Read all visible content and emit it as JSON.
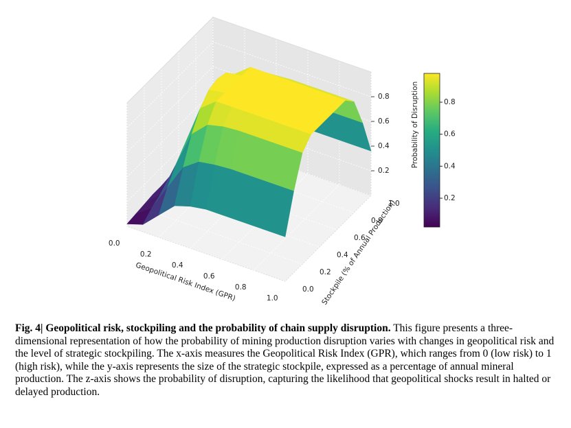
{
  "chart_data": {
    "type": "surface",
    "xlabel": "Geopolitical Risk Index (GPR)",
    "ylabel": "Stockpile (% of Annual Production)",
    "zlabel": "Probability of Disruption",
    "x": [
      0,
      0.1,
      0.2,
      0.3,
      0.4,
      0.5,
      0.6,
      0.7,
      0.8,
      0.9,
      1
    ],
    "y": [
      0,
      0.1,
      0.2,
      0.3,
      0.4,
      0.5,
      0.6,
      0.7,
      0.8,
      0.9,
      1
    ],
    "z": [
      [
        0.02,
        0.03,
        0.04,
        0.05,
        0.05,
        0.06,
        0.05,
        0.05,
        0.04,
        0.03,
        0.02
      ],
      [
        0.06,
        0.12,
        0.16,
        0.19,
        0.21,
        0.22,
        0.21,
        0.19,
        0.16,
        0.12,
        0.06
      ],
      [
        0.18,
        0.33,
        0.45,
        0.54,
        0.59,
        0.6,
        0.59,
        0.54,
        0.45,
        0.33,
        0.18
      ],
      [
        0.3,
        0.54,
        0.74,
        0.88,
        0.96,
        0.98,
        0.96,
        0.88,
        0.74,
        0.54,
        0.3
      ],
      [
        0.34,
        0.63,
        0.86,
        0.98,
        0.98,
        0.98,
        0.98,
        0.98,
        0.86,
        0.63,
        0.34
      ],
      [
        0.36,
        0.65,
        0.89,
        0.98,
        0.98,
        0.98,
        0.98,
        0.98,
        0.89,
        0.65,
        0.36
      ],
      [
        0.36,
        0.66,
        0.9,
        0.98,
        0.98,
        0.98,
        0.98,
        0.98,
        0.9,
        0.66,
        0.36
      ],
      [
        0.36,
        0.66,
        0.9,
        0.98,
        0.98,
        0.98,
        0.98,
        0.98,
        0.9,
        0.66,
        0.36
      ],
      [
        0.36,
        0.66,
        0.9,
        0.98,
        0.98,
        0.98,
        0.98,
        0.98,
        0.9,
        0.66,
        0.36
      ],
      [
        0.36,
        0.66,
        0.9,
        0.98,
        0.98,
        0.98,
        0.98,
        0.98,
        0.9,
        0.66,
        0.36
      ],
      [
        0.36,
        0.66,
        0.9,
        0.98,
        0.98,
        0.98,
        0.98,
        0.98,
        0.9,
        0.66,
        0.36
      ]
    ],
    "colormap": "viridis",
    "xlim": [
      0,
      1
    ],
    "ylim": [
      0,
      1
    ],
    "zlim": [
      0,
      1
    ],
    "xticks": [
      {
        "value": 0,
        "label": "0.0"
      },
      0.2,
      0.4,
      0.6,
      0.8,
      {
        "value": 1,
        "label": "1.0"
      }
    ],
    "yticks": [
      {
        "value": 0,
        "label": "0.0"
      },
      0.2,
      0.4,
      0.6,
      0.8,
      {
        "value": 1,
        "label": "1.0"
      }
    ],
    "zticks": [
      0.2,
      0.4,
      0.6,
      0.8
    ],
    "colorbar_ticks": [
      0.2,
      0.4,
      0.6,
      0.8
    ],
    "grid": true
  },
  "caption": {
    "label": "Fig. 4| Geopolitical risk, stockpiling and the probability of chain supply disruption.",
    "text": " This figure presents a three-dimensional representation of how the probability of mining production disruption varies with changes in geopolitical risk and the level of strategic stockpiling. The x-axis measures the Geopolitical Risk Index (GPR), which ranges from 0 (low risk) to 1 (high risk), while the y-axis represents the size of the strategic stockpile, expressed as a percentage of annual mineral production. The z-axis shows the probability of disruption, capturing the likelihood that geopolitical shocks result in halted or delayed production."
  }
}
